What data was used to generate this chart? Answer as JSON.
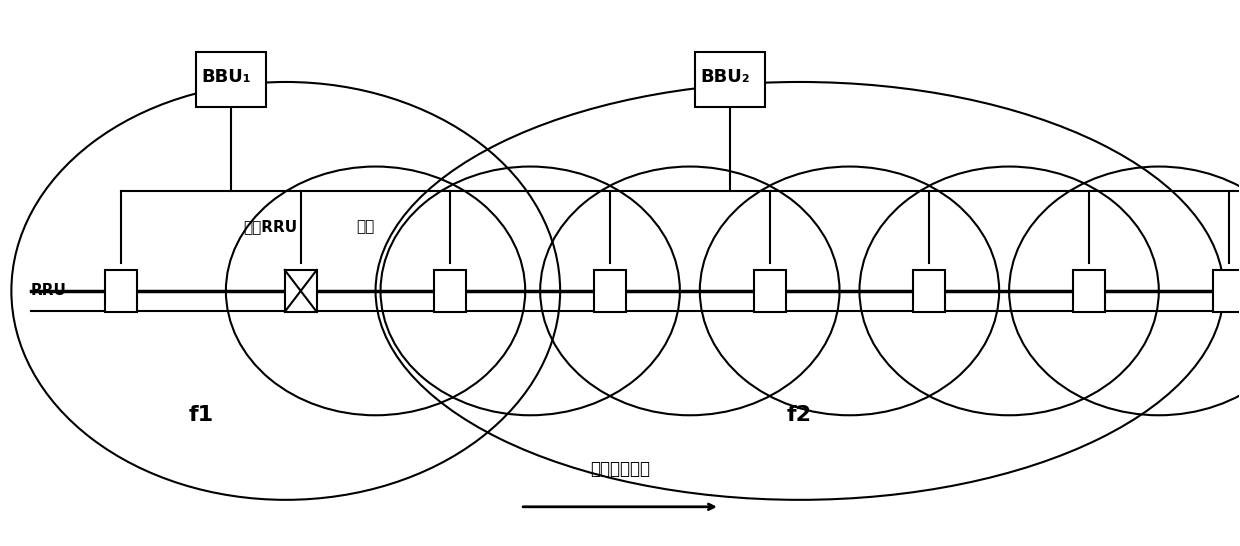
{
  "bg_color": "#ffffff",
  "line_color": "#000000",
  "fig_width": 12.4,
  "fig_height": 5.46,
  "dpi": 100,
  "bbu1_label": "BBU₁",
  "bbu2_label": "BBU₂",
  "rru_label": "RRU",
  "fault_label": "内部RRU",
  "fault_label2": "故障",
  "direction_label": "列车行驶方向",
  "f1_label": "f1",
  "f2_label": "f2"
}
